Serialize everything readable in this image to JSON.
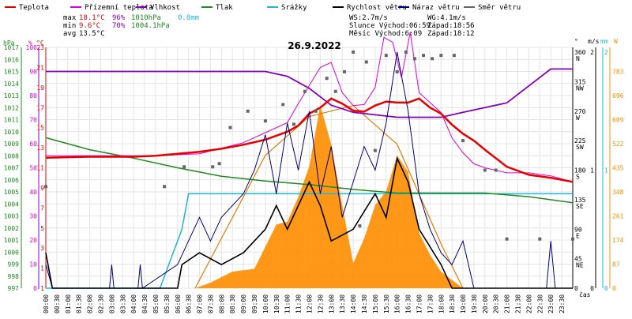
{
  "chart_data": {
    "type": "line",
    "title": "26.9.2022",
    "time_axis_label": "čas",
    "x_ticks": [
      "00:00",
      "00:30",
      "01:00",
      "01:30",
      "02:00",
      "02:30",
      "03:00",
      "03:30",
      "04:00",
      "04:30",
      "05:00",
      "05:30",
      "06:00",
      "06:30",
      "07:00",
      "07:30",
      "08:00",
      "08:30",
      "09:00",
      "09:30",
      "10:00",
      "10:30",
      "11:00",
      "11:30",
      "12:00",
      "12:30",
      "13:00",
      "13:30",
      "14:00",
      "14:30",
      "15:00",
      "15:30",
      "16:00",
      "16:30",
      "17:00",
      "17:30",
      "18:00",
      "18:30",
      "19:00",
      "19:30",
      "20:00",
      "20:30",
      "21:00",
      "21:30",
      "22:00",
      "22:30",
      "23:00",
      "23:30"
    ],
    "legend": [
      {
        "name": "Teplota",
        "color": "#e60000"
      },
      {
        "name": "Přízemní teplota",
        "color": "#dd00dd"
      },
      {
        "name": "Vlhkost",
        "color": "#8800bb"
      },
      {
        "name": "Tlak",
        "color": "#1f8a1f"
      },
      {
        "name": "Srážky",
        "color": "#22b5d6"
      },
      {
        "name": "Rychlost větru",
        "color": "#000000"
      },
      {
        "name": "Náraz větru",
        "color": "#00007a"
      },
      {
        "name": "Směr větru",
        "color": "#666666"
      }
    ],
    "stats": {
      "max_label": "max",
      "max_temp": "18.1°C",
      "max_hum": "96%",
      "max_press": "1010hPa",
      "max_rain": "0.8mm",
      "min_label": "min",
      "min_temp": "9.6°C",
      "min_hum": "70%",
      "min_press": "1004.1hPa",
      "avg_label": "avg",
      "avg_temp": "13.5°C",
      "ws": "WS:2.7m/s",
      "wg": "WG:4.1m/s",
      "sun": "Slunce Východ:06:59",
      "sun_set": "Západ:18:56",
      "moon": "Měsíc Východ:6:09",
      "moon_set": "Západ:18:12"
    },
    "axes": {
      "pressure": {
        "label": "hPa",
        "ticks": [
          "1017",
          "1016",
          "1015",
          "1014",
          "1013",
          "1012",
          "1011",
          "1010",
          "1009",
          "1008",
          "1007",
          "1006",
          "1005",
          "1004",
          "1003",
          "1002",
          "1001",
          "1000",
          "999",
          "998",
          "997"
        ]
      },
      "humidity": {
        "label": "%",
        "ticks": [
          "100",
          "90",
          "80",
          "70",
          "60",
          "50",
          "40",
          "30",
          "20",
          "10",
          "0"
        ]
      },
      "temperature": {
        "label": "°C",
        "ticks": [
          "23",
          "21",
          "19",
          "17",
          "15",
          "13",
          "11",
          "9",
          "7",
          "5",
          "3",
          "1",
          "-1"
        ]
      },
      "direction": {
        "label": "°",
        "ticks": [
          "360",
          "315",
          "270",
          "225",
          "180",
          "135",
          "90",
          "45",
          "0"
        ],
        "names": [
          "N",
          "NW",
          "W",
          "SW",
          "S",
          "SE",
          "E",
          "NE",
          ""
        ]
      },
      "wind": {
        "label": "m/s",
        "ticks": [
          "2",
          "1",
          "0"
        ]
      },
      "rain": {
        "label": "mm",
        "ticks": [
          "2",
          "1",
          "0"
        ]
      },
      "solar": {
        "label": "W",
        "ticks": [
          "783",
          "696",
          "609",
          "522",
          "435",
          "348",
          "261",
          "174",
          "87",
          "0"
        ]
      }
    },
    "series": {
      "temperature_c": [
        [
          0,
          12.0
        ],
        [
          2,
          12.1
        ],
        [
          4,
          12.1
        ],
        [
          5,
          12.2
        ],
        [
          6,
          12.4
        ],
        [
          7,
          12.6
        ],
        [
          8,
          12.9
        ],
        [
          9,
          13.3
        ],
        [
          10,
          13.8
        ],
        [
          11,
          14.6
        ],
        [
          11.5,
          15.2
        ],
        [
          12,
          16.4
        ],
        [
          12.5,
          17.0
        ],
        [
          13,
          17.9
        ],
        [
          13.5,
          17.4
        ],
        [
          14,
          16.7
        ],
        [
          14.5,
          16.6
        ],
        [
          15,
          17.2
        ],
        [
          15.5,
          17.6
        ],
        [
          16,
          17.5
        ],
        [
          16.5,
          17.5
        ],
        [
          17,
          17.9
        ],
        [
          17.5,
          17.0
        ],
        [
          18,
          16.4
        ],
        [
          18.5,
          15.3
        ],
        [
          19,
          14.4
        ],
        [
          19.5,
          13.7
        ],
        [
          20,
          12.8
        ],
        [
          21,
          11.1
        ],
        [
          22,
          10.3
        ],
        [
          23,
          10.0
        ],
        [
          24,
          9.6
        ]
      ],
      "ground_temperature_c": [
        [
          0,
          12.2
        ],
        [
          5,
          12.2
        ],
        [
          7,
          12.4
        ],
        [
          9,
          13.5
        ],
        [
          10,
          14.5
        ],
        [
          11,
          15.5
        ],
        [
          11.5,
          17.4
        ],
        [
          12,
          19.2
        ],
        [
          12.5,
          21.0
        ],
        [
          13,
          21.5
        ],
        [
          13.5,
          18.5
        ],
        [
          14,
          17.2
        ],
        [
          14.5,
          17.3
        ],
        [
          15,
          19.0
        ],
        [
          15.4,
          24.0
        ],
        [
          15.8,
          23.5
        ],
        [
          16.2,
          20.0
        ],
        [
          16.6,
          24.5
        ],
        [
          17,
          18.5
        ],
        [
          17.5,
          17.5
        ],
        [
          18,
          16.5
        ],
        [
          18.5,
          14.0
        ],
        [
          19,
          12.5
        ],
        [
          19.5,
          11.4
        ],
        [
          20,
          11.0
        ],
        [
          21,
          10.5
        ],
        [
          22,
          10.5
        ],
        [
          23,
          10.2
        ],
        [
          24,
          9.6
        ]
      ],
      "humidity_pct": [
        [
          0,
          90
        ],
        [
          4,
          90
        ],
        [
          8,
          90
        ],
        [
          10,
          90
        ],
        [
          11,
          88
        ],
        [
          12,
          83
        ],
        [
          13,
          76
        ],
        [
          14,
          73
        ],
        [
          15,
          72
        ],
        [
          16,
          71
        ],
        [
          17,
          71
        ],
        [
          18,
          71
        ],
        [
          19,
          73
        ],
        [
          20,
          75
        ],
        [
          21,
          77
        ],
        [
          22,
          84
        ],
        [
          23,
          91
        ],
        [
          24,
          91
        ]
      ],
      "pressure_hpa": [
        [
          0,
          1009.5
        ],
        [
          2,
          1008.5
        ],
        [
          4,
          1007.8
        ],
        [
          6,
          1007.0
        ],
        [
          8,
          1006.3
        ],
        [
          10,
          1005.9
        ],
        [
          12,
          1005.6
        ],
        [
          14,
          1005.2
        ],
        [
          16,
          1004.9
        ],
        [
          18,
          1004.9
        ],
        [
          20,
          1004.9
        ],
        [
          22,
          1004.6
        ],
        [
          24,
          1004.1
        ]
      ],
      "rain_mm": [
        [
          0,
          0
        ],
        [
          5.2,
          0
        ],
        [
          5.4,
          0.1
        ],
        [
          5.6,
          0.2
        ],
        [
          5.8,
          0.3
        ],
        [
          6,
          0.4
        ],
        [
          6.2,
          0.5
        ],
        [
          6.4,
          0.7
        ],
        [
          6.5,
          0.8
        ],
        [
          24,
          0.8
        ]
      ],
      "solar_w": [
        [
          6.8,
          0
        ],
        [
          7.5,
          20
        ],
        [
          8.5,
          60
        ],
        [
          9.5,
          70
        ],
        [
          10,
          150
        ],
        [
          10.5,
          230
        ],
        [
          11,
          240
        ],
        [
          11.5,
          330
        ],
        [
          12,
          440
        ],
        [
          12.5,
          660
        ],
        [
          13,
          520
        ],
        [
          13.5,
          300
        ],
        [
          14,
          90
        ],
        [
          14.5,
          180
        ],
        [
          15,
          300
        ],
        [
          15.5,
          350
        ],
        [
          16,
          480
        ],
        [
          16.5,
          420
        ],
        [
          17,
          200
        ],
        [
          17.5,
          120
        ],
        [
          18,
          60
        ],
        [
          18.5,
          30
        ],
        [
          19,
          0
        ]
      ],
      "solar_theoretical_w": [
        [
          6.8,
          0
        ],
        [
          8,
          180
        ],
        [
          10,
          480
        ],
        [
          12,
          620
        ],
        [
          14,
          660
        ],
        [
          16,
          520
        ],
        [
          18,
          160
        ],
        [
          19,
          0
        ]
      ],
      "wind_speed_ms": [
        [
          0,
          0.3
        ],
        [
          0.3,
          0
        ],
        [
          6,
          0
        ],
        [
          6.2,
          0.2
        ],
        [
          7,
          0.3
        ],
        [
          8,
          0.2
        ],
        [
          9,
          0.3
        ],
        [
          10,
          0.5
        ],
        [
          10.5,
          0.7
        ],
        [
          11,
          0.5
        ],
        [
          12,
          0.9
        ],
        [
          12.5,
          0.7
        ],
        [
          13,
          0.4
        ],
        [
          14,
          0.5
        ],
        [
          15,
          0.8
        ],
        [
          15.5,
          0.6
        ],
        [
          16,
          1.1
        ],
        [
          16.5,
          0.9
        ],
        [
          17,
          0.5
        ],
        [
          18,
          0.2
        ],
        [
          18.5,
          0
        ],
        [
          24,
          0
        ]
      ],
      "wind_gust_ms": [
        [
          0,
          0.2
        ],
        [
          0.3,
          0
        ],
        [
          2.9,
          0
        ],
        [
          3,
          0.2
        ],
        [
          3.1,
          0
        ],
        [
          4.2,
          0
        ],
        [
          4.3,
          0.2
        ],
        [
          4.4,
          0
        ],
        [
          6,
          0.2
        ],
        [
          6.5,
          0.4
        ],
        [
          7,
          0.6
        ],
        [
          7.5,
          0.4
        ],
        [
          8,
          0.6
        ],
        [
          9,
          0.8
        ],
        [
          9.5,
          1.0
        ],
        [
          10,
          1.3
        ],
        [
          10.5,
          0.8
        ],
        [
          11,
          1.4
        ],
        [
          11.5,
          1.0
        ],
        [
          12,
          1.5
        ],
        [
          12.5,
          0.8
        ],
        [
          13,
          1.2
        ],
        [
          13.5,
          0.6
        ],
        [
          14,
          0.9
        ],
        [
          14.5,
          1.2
        ],
        [
          15,
          1.0
        ],
        [
          15.5,
          1.4
        ],
        [
          16,
          2.0
        ],
        [
          16.5,
          1.5
        ],
        [
          17,
          0.8
        ],
        [
          17.5,
          0.5
        ],
        [
          18,
          0.3
        ],
        [
          18.5,
          0.2
        ],
        [
          19,
          0.4
        ],
        [
          19.5,
          0
        ],
        [
          22.8,
          0
        ],
        [
          23,
          0.4
        ],
        [
          23.2,
          0
        ],
        [
          24,
          0
        ]
      ],
      "wind_direction_deg": [
        [
          0,
          155
        ],
        [
          5.4,
          155
        ],
        [
          6.3,
          185
        ],
        [
          7.6,
          185
        ],
        [
          7.9,
          190
        ],
        [
          8.4,
          245
        ],
        [
          9.2,
          270
        ],
        [
          10,
          255
        ],
        [
          10.8,
          280
        ],
        [
          11.3,
          250
        ],
        [
          11.8,
          300
        ],
        [
          12.3,
          270
        ],
        [
          12.8,
          320
        ],
        [
          13.2,
          300
        ],
        [
          13.6,
          330
        ],
        [
          14,
          360
        ],
        [
          14.3,
          95
        ],
        [
          14.6,
          345
        ],
        [
          15,
          210
        ],
        [
          15.5,
          355
        ],
        [
          16,
          330
        ],
        [
          16.4,
          360
        ],
        [
          16.8,
          350
        ],
        [
          17.2,
          355
        ],
        [
          17.6,
          350
        ],
        [
          18,
          355
        ],
        [
          18.6,
          355
        ],
        [
          19,
          225
        ],
        [
          20,
          180
        ],
        [
          20.5,
          180
        ],
        [
          21,
          75
        ],
        [
          22.5,
          75
        ],
        [
          24,
          75
        ]
      ]
    }
  }
}
